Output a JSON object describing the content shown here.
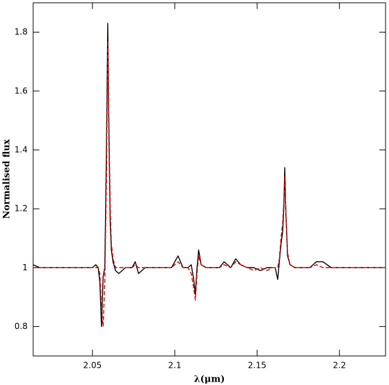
{
  "chart_data": {
    "type": "line",
    "xlabel": "λ(μm)",
    "ylabel": "Normalised flux",
    "x": [
      2.014,
      2.018,
      2.022,
      2.026,
      2.03,
      2.034,
      2.038,
      2.042,
      2.046,
      2.05,
      2.052,
      2.0535,
      2.0545,
      2.0555,
      2.0565,
      2.0575,
      2.0585,
      2.0593,
      2.06,
      2.0608,
      2.0615,
      2.0625,
      2.064,
      2.066,
      2.068,
      2.07,
      2.074,
      2.076,
      2.078,
      2.082,
      2.086,
      2.09,
      2.094,
      2.098,
      2.102,
      2.105,
      2.108,
      2.11,
      2.1115,
      2.1125,
      2.1135,
      2.1145,
      2.116,
      2.119,
      2.123,
      2.127,
      2.13,
      2.134,
      2.137,
      2.14,
      2.144,
      2.148,
      2.152,
      2.156,
      2.159,
      2.161,
      2.1625,
      2.1635,
      2.1645,
      2.1655,
      2.1662,
      2.1668,
      2.1675,
      2.1685,
      2.17,
      2.173,
      2.177,
      2.182,
      2.186,
      2.19,
      2.195,
      2.2,
      2.205,
      2.21,
      2.215,
      2.22,
      2.224,
      2.228
    ],
    "series": [
      {
        "color": "#000000",
        "dash": false,
        "values": [
          1.01,
          1.0,
          1.0,
          1.0,
          1.0,
          1.0,
          1.0,
          1.0,
          1.0,
          1.0,
          1.01,
          1.0,
          0.95,
          0.8,
          0.97,
          1.0,
          1.4,
          1.83,
          1.45,
          1.15,
          1.06,
          1.02,
          0.99,
          0.98,
          0.99,
          1.0,
          1.0,
          1.02,
          0.98,
          1.0,
          1.0,
          1.0,
          1.0,
          1.0,
          1.04,
          1.0,
          1.0,
          1.01,
          0.96,
          0.91,
          1.0,
          1.06,
          1.01,
          1.0,
          1.0,
          1.0,
          1.02,
          1.0,
          1.03,
          1.01,
          1.0,
          1.0,
          0.99,
          1.0,
          1.0,
          1.0,
          0.96,
          1.02,
          1.08,
          1.12,
          1.2,
          1.34,
          1.18,
          1.04,
          1.01,
          1.0,
          1.0,
          1.0,
          1.02,
          1.02,
          1.0,
          1.0,
          1.0,
          1.0,
          1.0,
          1.0,
          1.0,
          1.0
        ]
      },
      {
        "color": "#d40000",
        "dash": true,
        "values": [
          1.0,
          1.0,
          1.0,
          1.0,
          1.0,
          1.0,
          1.0,
          1.0,
          1.0,
          1.0,
          1.0,
          1.0,
          0.98,
          0.86,
          0.8,
          0.95,
          1.3,
          1.77,
          1.5,
          1.2,
          1.08,
          1.03,
          1.0,
          1.0,
          1.0,
          1.0,
          1.0,
          1.01,
          1.0,
          1.0,
          1.0,
          1.0,
          1.0,
          1.0,
          1.02,
          1.0,
          1.0,
          0.98,
          0.93,
          0.89,
          0.98,
          1.04,
          1.01,
          1.0,
          1.0,
          1.0,
          1.01,
          1.0,
          1.02,
          1.01,
          1.0,
          0.99,
          1.0,
          0.99,
          1.0,
          1.0,
          1.0,
          1.03,
          1.1,
          1.15,
          1.22,
          1.31,
          1.18,
          1.05,
          1.01,
          1.0,
          1.0,
          1.0,
          1.01,
          1.0,
          1.0,
          1.0,
          1.0,
          1.0,
          1.0,
          1.0,
          1.0,
          1.0
        ]
      }
    ],
    "xlim": [
      2.014,
      2.228
    ],
    "xticks": [
      2.05,
      2.1,
      2.15,
      2.2
    ],
    "ylim": [
      0.7,
      1.9
    ],
    "yticks": [
      0.8,
      1,
      1.2,
      1.4,
      1.6,
      1.8
    ],
    "grid": false
  }
}
